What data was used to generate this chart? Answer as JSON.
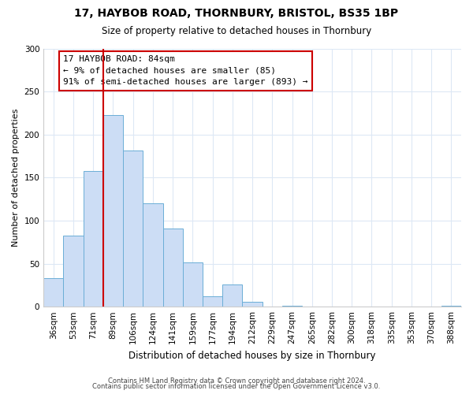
{
  "title": "17, HAYBOB ROAD, THORNBURY, BRISTOL, BS35 1BP",
  "subtitle": "Size of property relative to detached houses in Thornbury",
  "xlabel": "Distribution of detached houses by size in Thornbury",
  "ylabel": "Number of detached properties",
  "bar_labels": [
    "36sqm",
    "53sqm",
    "71sqm",
    "89sqm",
    "106sqm",
    "124sqm",
    "141sqm",
    "159sqm",
    "177sqm",
    "194sqm",
    "212sqm",
    "229sqm",
    "247sqm",
    "265sqm",
    "282sqm",
    "300sqm",
    "318sqm",
    "335sqm",
    "353sqm",
    "370sqm",
    "388sqm"
  ],
  "bar_heights": [
    33,
    83,
    158,
    223,
    181,
    120,
    91,
    51,
    12,
    26,
    6,
    0,
    1,
    0,
    0,
    0,
    0,
    0,
    0,
    0,
    1
  ],
  "bar_color": "#ccddf5",
  "bar_edge_color": "#6baed6",
  "vline_x_index": 3.0,
  "annotation_line1": "17 HAYBOB ROAD: 84sqm",
  "annotation_line2": "← 9% of detached houses are smaller (85)",
  "annotation_line3": "91% of semi-detached houses are larger (893) →",
  "annotation_box_color": "#ffffff",
  "annotation_box_edge": "#cc0000",
  "vline_color": "#cc0000",
  "ylim": [
    0,
    300
  ],
  "yticks": [
    0,
    50,
    100,
    150,
    200,
    250,
    300
  ],
  "footer1": "Contains HM Land Registry data © Crown copyright and database right 2024.",
  "footer2": "Contains public sector information licensed under the Open Government Licence v3.0.",
  "background_color": "#ffffff",
  "grid_color": "#dde8f5"
}
